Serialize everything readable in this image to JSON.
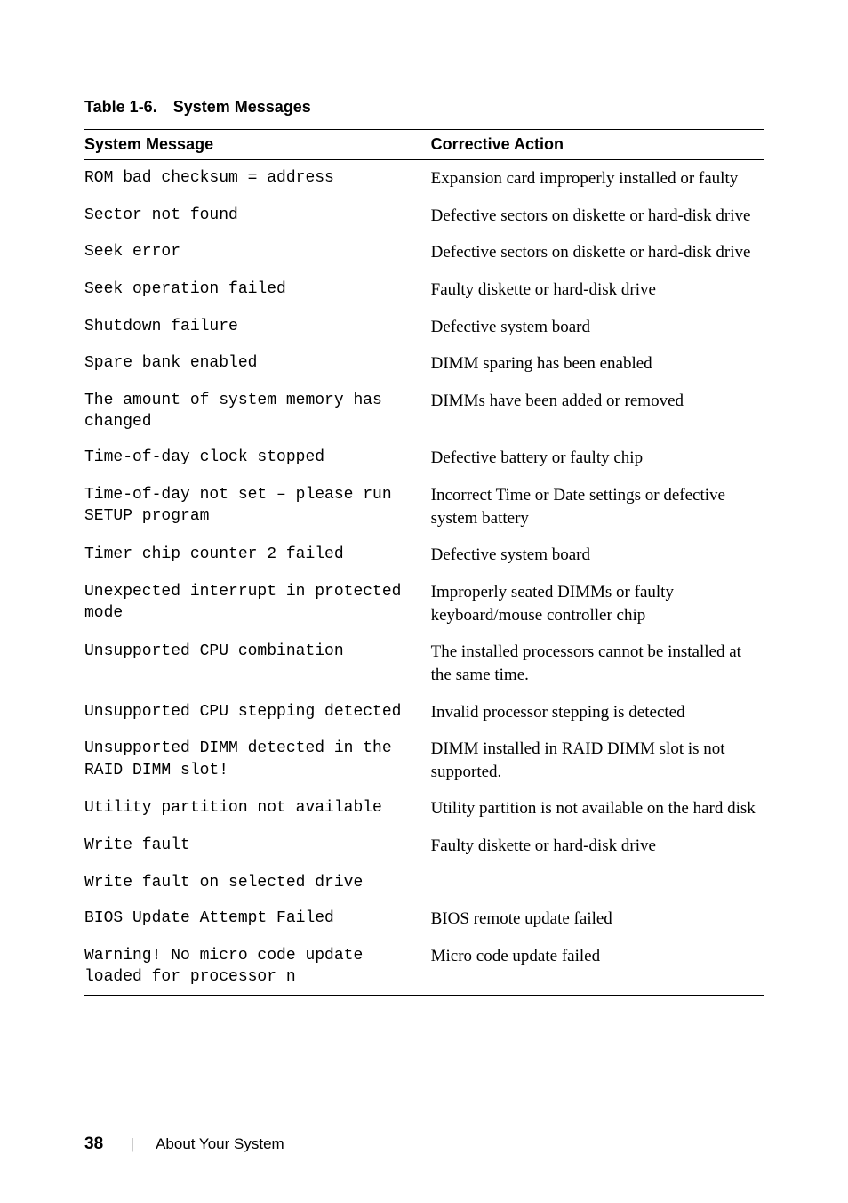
{
  "caption": {
    "number": "Table 1-6.",
    "title": "System Messages"
  },
  "columns": {
    "c1": "System Message",
    "c2": "Corrective Action"
  },
  "rows": [
    {
      "msg": "ROM bad checksum = address",
      "action": "Expansion card improperly installed or faulty"
    },
    {
      "msg": "Sector not found",
      "action": "Defective sectors on diskette or hard-disk drive"
    },
    {
      "msg": "Seek error",
      "action": "Defective sectors on diskette or hard-disk drive"
    },
    {
      "msg": "Seek operation failed",
      "action": "Faulty diskette or hard-disk drive"
    },
    {
      "msg": "Shutdown failure",
      "action": "Defective system board"
    },
    {
      "msg": "Spare bank enabled",
      "action": "DIMM sparing has been enabled"
    },
    {
      "msg": "The amount of system memory has changed",
      "action": "DIMMs have been added or removed"
    },
    {
      "msg": "Time-of-day clock stopped",
      "action": "Defective battery or faulty chip"
    },
    {
      "msg": "Time-of-day not set – please run SETUP program",
      "action": "Incorrect Time or Date settings or defective system battery"
    },
    {
      "msg": "Timer chip counter 2 failed",
      "action": "Defective system board"
    },
    {
      "msg": "Unexpected interrupt in protected mode",
      "action": "Improperly seated DIMMs or faulty keyboard/mouse controller chip"
    },
    {
      "msg": "Unsupported CPU combination",
      "action": "The installed processors cannot be installed at the same time."
    },
    {
      "msg": "Unsupported CPU stepping detected",
      "action": "Invalid processor stepping is detected"
    },
    {
      "msg": "Unsupported DIMM detected in the RAID DIMM slot!",
      "action": "DIMM installed in RAID DIMM slot is not supported."
    },
    {
      "msg": "Utility partition not available",
      "action": "Utility partition is not available on the hard disk"
    },
    {
      "msg": "Write fault",
      "action": "Faulty diskette or hard-disk drive"
    },
    {
      "msg": "Write fault on selected drive",
      "action": ""
    },
    {
      "msg": "BIOS Update Attempt Failed",
      "action": "BIOS remote update failed"
    },
    {
      "msg": "Warning! No micro code update loaded for processor n",
      "action": "Micro code update failed"
    }
  ],
  "footer": {
    "page": "38",
    "section": "About Your System"
  }
}
